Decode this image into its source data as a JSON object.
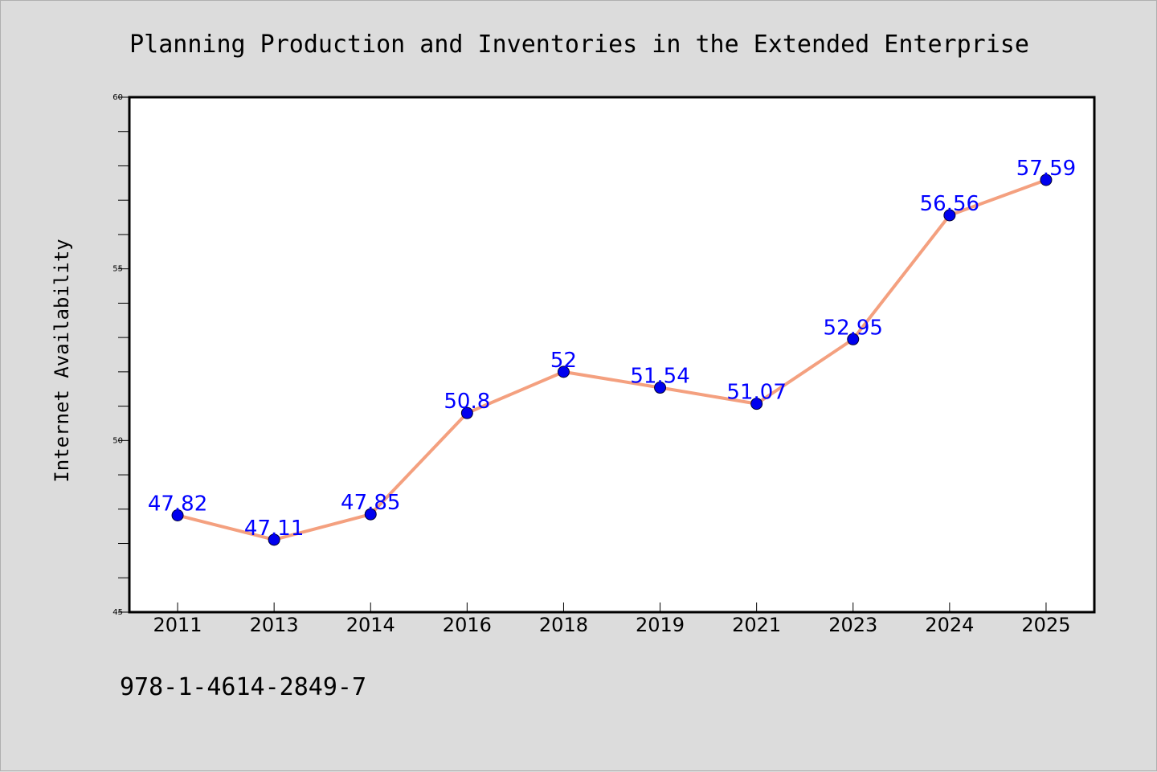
{
  "chart_data": {
    "type": "line",
    "title": "Planning Production and Inventories in the Extended Enterprise",
    "xlabel": "",
    "ylabel": "Internet Availability",
    "categories": [
      "2011",
      "2013",
      "2014",
      "2016",
      "2018",
      "2019",
      "2021",
      "2023",
      "2024",
      "2025"
    ],
    "series": [
      {
        "values": [
          47.82,
          47.11,
          47.85,
          50.8,
          52,
          51.54,
          51.07,
          52.95,
          56.56,
          57.59
        ],
        "data_labels": [
          "47.82",
          "47.11",
          "47.85",
          "50.8",
          "52",
          "51.54",
          "51.07",
          "52.95",
          "56.56",
          "57.59"
        ]
      }
    ],
    "ylim": [
      45,
      60
    ],
    "yticks": [
      "45",
      "50",
      "55",
      "60"
    ],
    "y_minor_step": 1,
    "grid": false,
    "legend": "none",
    "colors": {
      "line": "#f4a07f",
      "marker": "#0000ee",
      "marker_edge": "#000033",
      "data_label": "#0000ff",
      "plot_background": "#ffffff",
      "figure_background": "#dcdcdc"
    }
  },
  "footnote": "978-1-4614-2849-7"
}
